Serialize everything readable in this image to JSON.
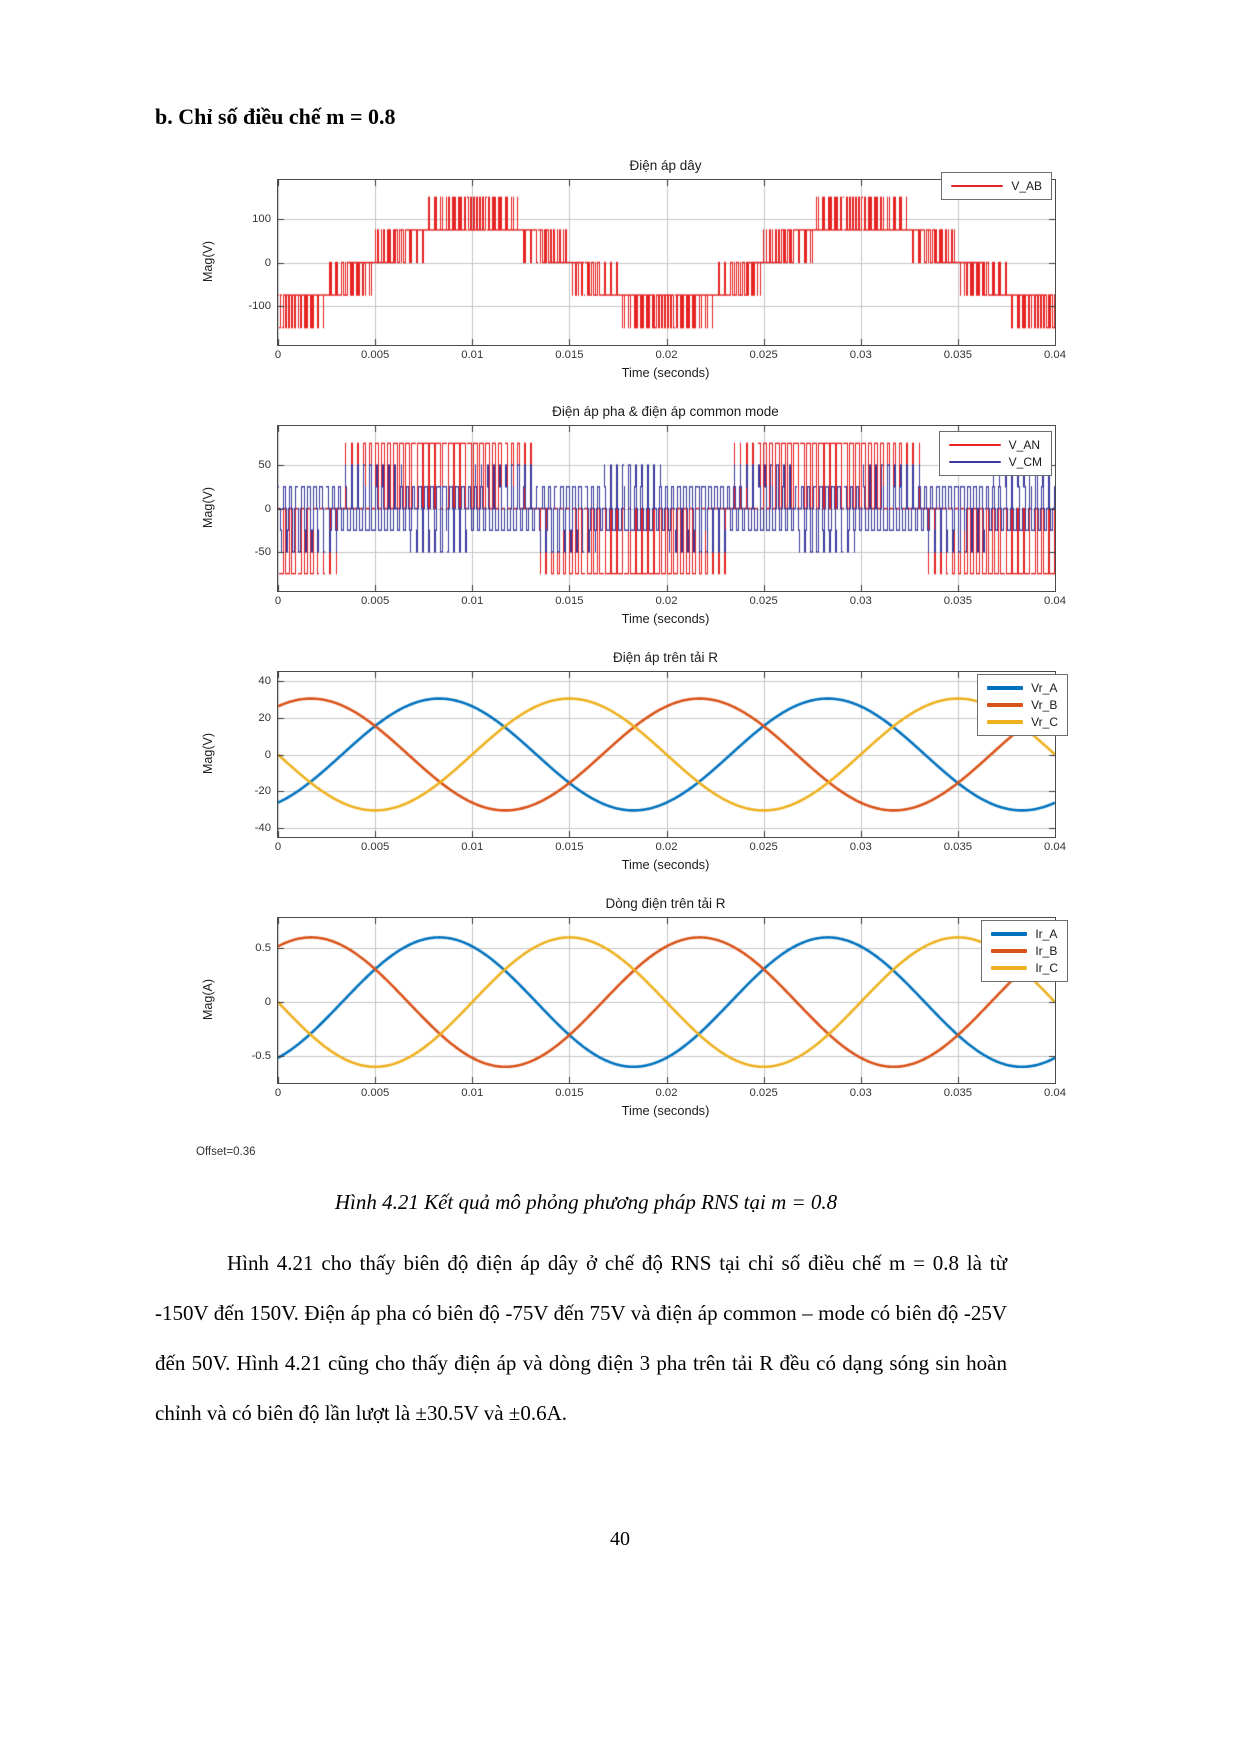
{
  "document": {
    "heading": "b. Chỉ số điều chế m = 0.8",
    "caption": "Hình  4.21 Kết quả mô phỏng phương pháp RNS tại m = 0.8",
    "body_paragraph": "Hình 4.21 cho thấy biên độ điện áp dây ở chế độ RNS tại chỉ số điều chế m = 0.8 là từ -150V đến 150V. Điện áp pha có biên độ -75V đến 75V và điện áp common – mode có biên độ -25V đến 50V. Hình 4.21 cũng cho thấy điện áp và dòng điện 3 pha trên tải R đều có dạng sóng sin hoàn chỉnh và có biên độ lần lượt là ±30.5V và ±0.6A.",
    "offset_label": "Offset=0.36",
    "page_number": "40"
  },
  "chart_data": [
    {
      "type": "line",
      "render": "pwm-minmax",
      "title": "Điện áp dây",
      "xlabel": "Time (seconds)",
      "ylabel": "Mag(V)",
      "xlim": [
        0,
        0.04
      ],
      "ylim": [
        -190,
        190
      ],
      "xticks": [
        {
          "v": 0,
          "t": "0"
        },
        {
          "v": 0.005,
          "t": "0.005"
        },
        {
          "v": 0.01,
          "t": "0.01"
        },
        {
          "v": 0.015,
          "t": "0.015"
        },
        {
          "v": 0.02,
          "t": "0.02"
        },
        {
          "v": 0.025,
          "t": "0.025"
        },
        {
          "v": 0.03,
          "t": "0.03"
        },
        {
          "v": 0.035,
          "t": "0.035"
        },
        {
          "v": 0.04,
          "t": "0.04"
        }
      ],
      "yticks": [
        {
          "v": 100,
          "t": "100"
        },
        {
          "v": 0,
          "t": "0"
        },
        {
          "v": -100,
          "t": "-100"
        }
      ],
      "grid": true,
      "legend_position": "top-right",
      "pwm": {
        "modulation_index": 0.8,
        "fundamental_hz": 50,
        "carrier_hz": 3150,
        "pole_level_v": 75,
        "phase_a_rad": -1.04
      },
      "series": [
        {
          "name": "V_AB",
          "color": "#e62222",
          "signal": "line_ab",
          "levels_v": [
            -150,
            -75,
            0,
            75,
            150
          ],
          "linewidth": 1.4
        }
      ]
    },
    {
      "type": "line",
      "render": "pwm-minmax",
      "title": "Điện áp pha & điện áp common mode",
      "xlabel": "Time (seconds)",
      "ylabel": "Mag(V)",
      "xlim": [
        0,
        0.04
      ],
      "ylim": [
        -95,
        95
      ],
      "xticks": [
        {
          "v": 0,
          "t": "0"
        },
        {
          "v": 0.005,
          "t": "0.005"
        },
        {
          "v": 0.01,
          "t": "0.01"
        },
        {
          "v": 0.015,
          "t": "0.015"
        },
        {
          "v": 0.02,
          "t": "0.02"
        },
        {
          "v": 0.025,
          "t": "0.025"
        },
        {
          "v": 0.03,
          "t": "0.03"
        },
        {
          "v": 0.035,
          "t": "0.035"
        },
        {
          "v": 0.04,
          "t": "0.04"
        }
      ],
      "yticks": [
        {
          "v": 50,
          "t": "50"
        },
        {
          "v": 0,
          "t": "0"
        },
        {
          "v": -50,
          "t": "-50"
        }
      ],
      "grid": true,
      "legend_position": "top-right",
      "pwm": {
        "modulation_index": 0.8,
        "fundamental_hz": 50,
        "carrier_hz": 3150,
        "pole_level_v": 75,
        "phase_a_rad": -1.04
      },
      "series": [
        {
          "name": "V_AN",
          "color": "#e62222",
          "signal": "phase_a",
          "levels_v": [
            -75,
            0,
            75
          ],
          "linewidth": 1.4
        },
        {
          "name": "V_CM",
          "color": "#3a3a9e",
          "signal": "common_mode",
          "levels_v": [
            -25,
            0,
            25,
            50
          ],
          "linewidth": 1.4
        }
      ]
    },
    {
      "type": "line",
      "render": "sine",
      "title": "Điện áp trên tải R",
      "xlabel": "Time (seconds)",
      "ylabel": "Mag(V)",
      "xlim": [
        0,
        0.04
      ],
      "ylim": [
        -45,
        45
      ],
      "xticks": [
        {
          "v": 0,
          "t": "0"
        },
        {
          "v": 0.005,
          "t": "0.005"
        },
        {
          "v": 0.01,
          "t": "0.01"
        },
        {
          "v": 0.015,
          "t": "0.015"
        },
        {
          "v": 0.02,
          "t": "0.02"
        },
        {
          "v": 0.025,
          "t": "0.025"
        },
        {
          "v": 0.03,
          "t": "0.03"
        },
        {
          "v": 0.035,
          "t": "0.035"
        },
        {
          "v": 0.04,
          "t": "0.04"
        }
      ],
      "yticks": [
        {
          "v": 40,
          "t": "40"
        },
        {
          "v": 20,
          "t": "20"
        },
        {
          "v": 0,
          "t": "0"
        },
        {
          "v": -20,
          "t": "-20"
        },
        {
          "v": -40,
          "t": "-40"
        }
      ],
      "grid": true,
      "legend_position": "top-right",
      "frequency_hz": 50,
      "series": [
        {
          "name": "Vr_A",
          "color": "#0072bd",
          "amplitude": 30.5,
          "peak_time_s": 0.0083,
          "linewidth": 2.6
        },
        {
          "name": "Vr_B",
          "color": "#d95319",
          "amplitude": 30.5,
          "peak_time_s": 0.0217,
          "linewidth": 2.6
        },
        {
          "name": "Vr_C",
          "color": "#edb120",
          "amplitude": 30.5,
          "peak_time_s": 0.015,
          "linewidth": 2.6
        }
      ]
    },
    {
      "type": "line",
      "render": "sine",
      "title": "Dòng điện trên tải R",
      "xlabel": "Time (seconds)",
      "ylabel": "Mag(A)",
      "xlim": [
        0,
        0.04
      ],
      "ylim": [
        -0.75,
        0.78
      ],
      "xticks": [
        {
          "v": 0,
          "t": "0"
        },
        {
          "v": 0.005,
          "t": "0.005"
        },
        {
          "v": 0.01,
          "t": "0.01"
        },
        {
          "v": 0.015,
          "t": "0.015"
        },
        {
          "v": 0.02,
          "t": "0.02"
        },
        {
          "v": 0.025,
          "t": "0.025"
        },
        {
          "v": 0.03,
          "t": "0.03"
        },
        {
          "v": 0.035,
          "t": "0.035"
        },
        {
          "v": 0.04,
          "t": "0.04"
        }
      ],
      "yticks": [
        {
          "v": 0.5,
          "t": "0.5"
        },
        {
          "v": 0,
          "t": "0"
        },
        {
          "v": -0.5,
          "t": "-0.5"
        }
      ],
      "grid": true,
      "legend_position": "top-right",
      "frequency_hz": 50,
      "series": [
        {
          "name": "Ir_A",
          "color": "#0072bd",
          "amplitude": 0.6,
          "peak_time_s": 0.0083,
          "linewidth": 2.6
        },
        {
          "name": "Ir_B",
          "color": "#d95319",
          "amplitude": 0.6,
          "peak_time_s": 0.0217,
          "linewidth": 2.6
        },
        {
          "name": "Ir_C",
          "color": "#edb120",
          "amplitude": 0.6,
          "peak_time_s": 0.015,
          "linewidth": 2.6
        }
      ]
    }
  ]
}
